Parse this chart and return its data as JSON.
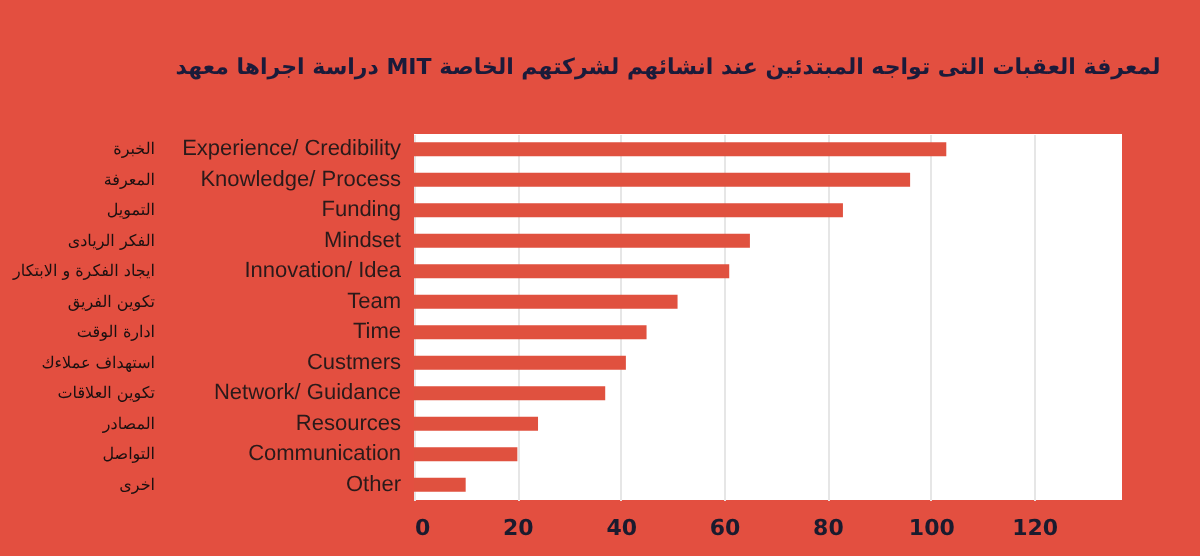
{
  "chart_data": {
    "type": "bar",
    "orientation": "horizontal",
    "title": "دراسة اجراها معهد MIT لمعرفة العقبات التى تواجه المبتدئين عند انشائهم لشركتهم الخاصة",
    "categories": [
      "Experience/ Credibility",
      "Knowledge/ Process",
      "Funding",
      "Mindset",
      "Innovation/ Idea",
      "Team",
      "Time",
      "Custmers",
      "Network/ Guidance",
      "Resources",
      "Communication",
      "Other"
    ],
    "y2_categories": [
      "الخبرة",
      "المعرفة",
      "التمويل",
      "الفكر الريادى",
      "ايجاد الفكرة و الابتكار",
      "تكوين الفريق",
      "ادارة الوقت",
      "استهداف عملاءك",
      "تكوين العلاقات",
      "المصادر",
      "التواصل",
      "اخرى"
    ],
    "values": [
      103,
      96,
      83,
      65,
      61,
      51,
      45,
      41,
      37,
      24,
      20,
      10
    ],
    "color": "#e0513f",
    "xlim": [
      0,
      137
    ],
    "xticks": [
      0,
      20,
      40,
      60,
      80,
      100,
      120
    ],
    "grid": "x"
  }
}
